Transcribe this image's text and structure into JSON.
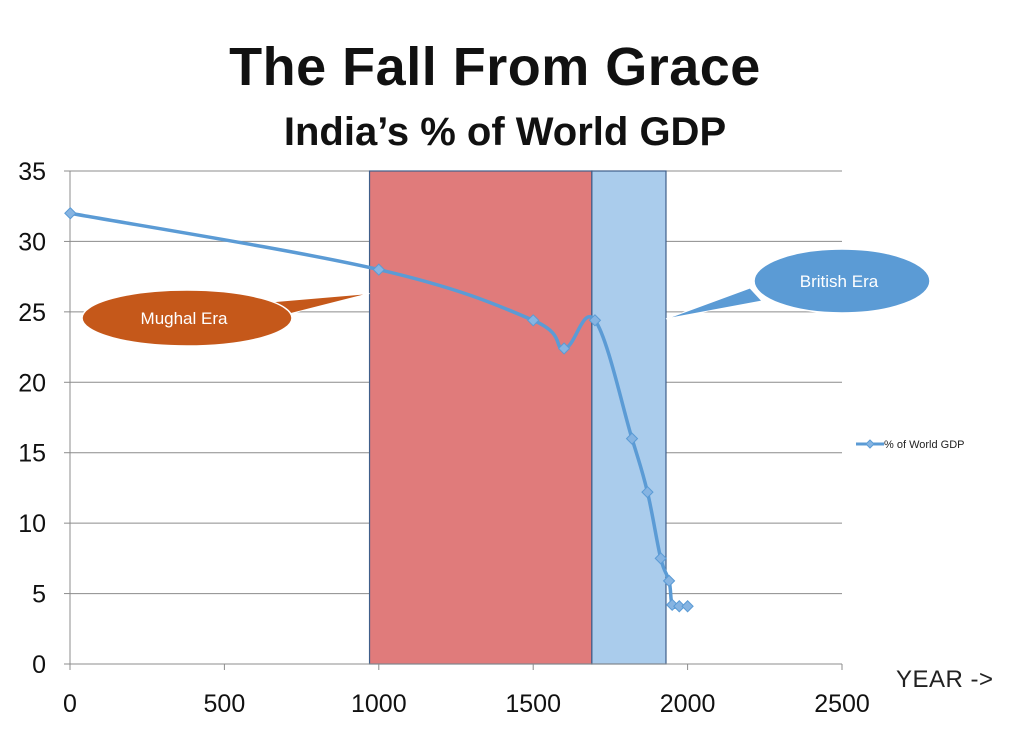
{
  "chart_data": {
    "type": "line",
    "title": "The Fall From Grace",
    "subtitle": "India’s % of World GDP",
    "xlabel": "YEAR ->",
    "ylabel": "",
    "xlim": [
      0,
      2500
    ],
    "ylim": [
      0,
      35
    ],
    "xticks": [
      0,
      500,
      1000,
      1500,
      2000,
      2500
    ],
    "yticks": [
      0,
      5,
      10,
      15,
      20,
      25,
      30,
      35
    ],
    "grid": "horizontal",
    "legend_position": "right",
    "series": [
      {
        "name": "% of World GDP",
        "color": "#5b9bd5",
        "points": [
          {
            "x": 1,
            "y": 32.0
          },
          {
            "x": 1000,
            "y": 28.0
          },
          {
            "x": 1500,
            "y": 24.4
          },
          {
            "x": 1600,
            "y": 22.4
          },
          {
            "x": 1700,
            "y": 24.4
          },
          {
            "x": 1820,
            "y": 16.0
          },
          {
            "x": 1870,
            "y": 12.2
          },
          {
            "x": 1913,
            "y": 7.5
          },
          {
            "x": 1940,
            "y": 5.9
          },
          {
            "x": 1950,
            "y": 4.2
          },
          {
            "x": 1973,
            "y": 4.1
          },
          {
            "x": 2000,
            "y": 4.1
          }
        ]
      }
    ],
    "regions": [
      {
        "name": "Mughal",
        "x_start": 970,
        "x_end": 1690,
        "color": "#e07b7b"
      },
      {
        "name": "British",
        "x_start": 1690,
        "x_end": 1930,
        "color": "#aaccec"
      }
    ],
    "annotations": [
      {
        "text": "Mughal Era",
        "color": "#c5581a",
        "points_to": {
          "x": 970,
          "y": 26.3
        }
      },
      {
        "text": "British Era",
        "color": "#5b9bd5",
        "points_to": {
          "x": 1930,
          "y": 24.5
        }
      }
    ]
  }
}
